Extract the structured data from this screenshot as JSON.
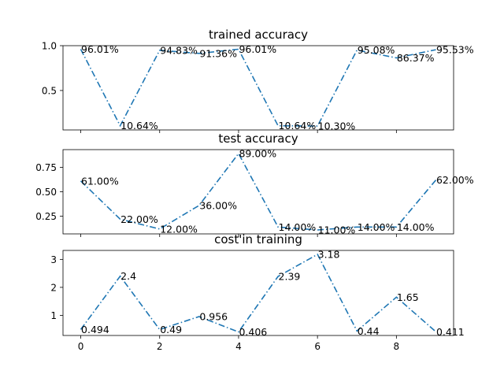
{
  "colors": {
    "line": "#1f77b4",
    "axis": "#000000"
  },
  "chart_data": [
    {
      "type": "line",
      "title": "trained accuracy",
      "x": [
        0,
        1,
        2,
        3,
        4,
        5,
        6,
        7,
        8,
        9
      ],
      "values": [
        0.9601,
        0.1064,
        0.9483,
        0.9136,
        0.9601,
        0.1064,
        0.103,
        0.9508,
        0.8637,
        0.9553
      ],
      "labels": [
        "96.01%",
        "10.64%",
        "94.83%",
        "91.36%",
        "96.01%",
        "10.64%",
        "10.30%",
        "95.08%",
        "86.37%",
        "95.53%"
      ],
      "ylim": [
        0.06,
        1.0
      ],
      "yticks": [
        0.5,
        1.0
      ],
      "ytick_labels": [
        "0.5",
        "1.0"
      ],
      "xticks": [
        0,
        2,
        4,
        6,
        8
      ],
      "xtick_labels": [],
      "grid": false,
      "line_style": "dash-dot"
    },
    {
      "type": "line",
      "title": "test accuracy",
      "x": [
        0,
        1,
        2,
        3,
        4,
        5,
        6,
        7,
        8,
        9
      ],
      "values": [
        0.61,
        0.22,
        0.12,
        0.36,
        0.89,
        0.14,
        0.11,
        0.14,
        0.14,
        0.62
      ],
      "labels": [
        "61.00%",
        "22.00%",
        "12.00%",
        "36.00%",
        "89.00%",
        "14.00%",
        "11.00%",
        "14.00%",
        "14.00%",
        "62.00%"
      ],
      "ylim": [
        0.07,
        0.93
      ],
      "yticks": [
        0.25,
        0.5,
        0.75
      ],
      "ytick_labels": [
        "0.25",
        "0.50",
        "0.75"
      ],
      "xticks": [
        0,
        2,
        4,
        6,
        8
      ],
      "xtick_labels": [],
      "grid": false,
      "line_style": "dash-dot"
    },
    {
      "type": "line",
      "title": "cost'in training",
      "x": [
        0,
        1,
        2,
        3,
        4,
        5,
        6,
        7,
        8,
        9
      ],
      "values": [
        0.494,
        2.4,
        0.49,
        0.956,
        0.406,
        2.39,
        3.18,
        0.44,
        1.65,
        0.411
      ],
      "labels": [
        "0.494",
        "2.4",
        "0.49",
        "0.956",
        "0.406",
        "2.39",
        "3.18",
        "0.44",
        "1.65",
        "0.411"
      ],
      "ylim": [
        0.28,
        3.32
      ],
      "yticks": [
        1,
        2,
        3
      ],
      "ytick_labels": [
        "1",
        "2",
        "3"
      ],
      "xticks": [
        0,
        2,
        4,
        6,
        8
      ],
      "xtick_labels": [
        "0",
        "2",
        "4",
        "6",
        "8"
      ],
      "grid": false,
      "line_style": "dash-dot"
    }
  ]
}
